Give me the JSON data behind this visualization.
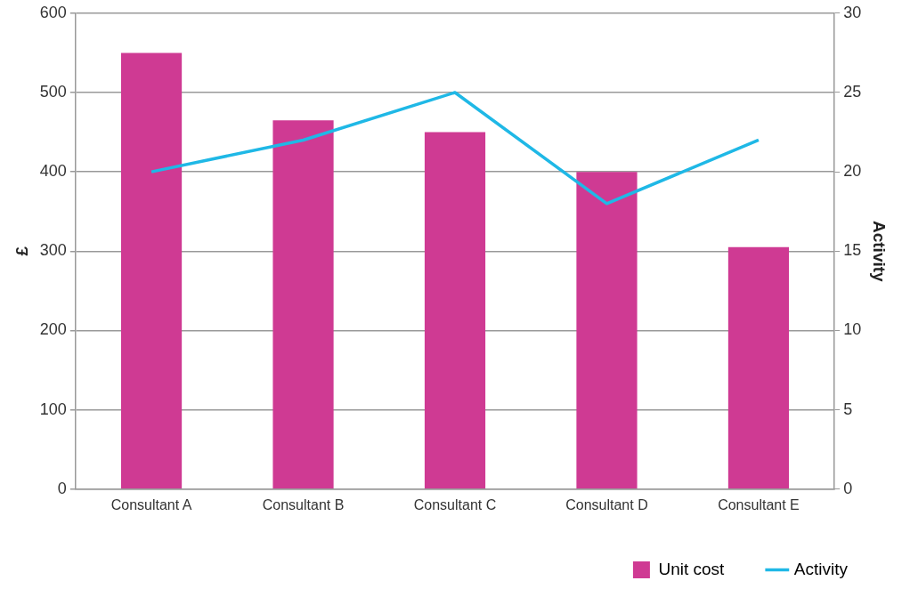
{
  "chart_data": {
    "type": "bar",
    "categories": [
      "Consultant A",
      "Consultant B",
      "Consultant C",
      "Consultant D",
      "Consultant E"
    ],
    "series": [
      {
        "name": "Unit cost",
        "color": "#cf3a93",
        "values": [
          550,
          465,
          450,
          400,
          305
        ]
      },
      {
        "name": "Activity",
        "type": "line",
        "axis": "y2",
        "color": "#1fb8e6",
        "values": [
          20,
          22,
          25,
          18,
          22
        ]
      }
    ],
    "ylabel": "£",
    "y2label": "Activity",
    "ylim": [
      0,
      600
    ],
    "yticks": [
      0,
      100,
      200,
      300,
      400,
      500,
      600
    ],
    "y2lim": [
      0,
      30
    ],
    "y2ticks": [
      0,
      5,
      10,
      15,
      20,
      25,
      30
    ],
    "grid": "y",
    "legend": "bottom right",
    "marker": "none"
  }
}
